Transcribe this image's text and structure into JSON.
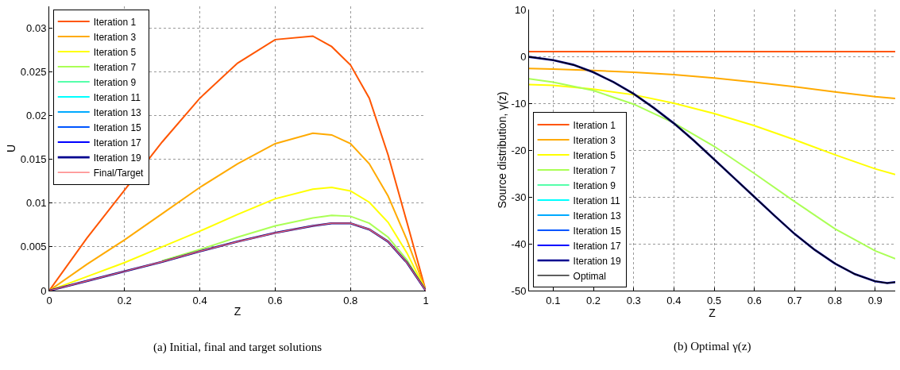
{
  "chart_data": [
    {
      "type": "line",
      "xlabel": "Z",
      "ylabel": "U",
      "annotations": [
        "(a) Initial, final and target solutions"
      ],
      "xlim": [
        0,
        1
      ],
      "xticks": [
        0,
        0.2,
        0.4,
        0.6,
        0.8,
        1
      ],
      "ylim": [
        0,
        0.0325
      ],
      "yticks": [
        0,
        0.005,
        0.01,
        0.015,
        0.02,
        0.025,
        0.03
      ],
      "grid": true,
      "legend": "top left",
      "marker": "none",
      "line_style": "solid",
      "x": [
        0,
        0.1,
        0.2,
        0.3,
        0.4,
        0.5,
        0.6,
        0.7,
        0.75,
        0.8,
        0.85,
        0.9,
        0.95,
        1
      ],
      "series": [
        {
          "name": "Iteration 1",
          "color": "#ff5500",
          "values": [
            0,
            0.006,
            0.0115,
            0.017,
            0.022,
            0.026,
            0.0287,
            0.0291,
            0.0279,
            0.0258,
            0.022,
            0.0155,
            0.0078,
            0
          ]
        },
        {
          "name": "Iteration 3",
          "color": "#ffaa00",
          "values": [
            0,
            0.003,
            0.0058,
            0.0088,
            0.0118,
            0.0145,
            0.0168,
            0.018,
            0.0178,
            0.0168,
            0.0145,
            0.0108,
            0.0058,
            0
          ]
        },
        {
          "name": "Iteration 5",
          "color": "#ffff00",
          "values": [
            0,
            0.0016,
            0.0032,
            0.005,
            0.0068,
            0.0087,
            0.0105,
            0.0116,
            0.0118,
            0.0114,
            0.0101,
            0.0078,
            0.0043,
            0
          ]
        },
        {
          "name": "Iteration 7",
          "color": "#aaff55",
          "values": [
            null,
            null,
            null,
            0.0034,
            0.0047,
            0.0061,
            0.0074,
            0.0083,
            0.0086,
            0.0085,
            0.0077,
            0.0061,
            0.0035,
            0
          ]
        },
        {
          "name": "Iteration 9",
          "color": "#55ffaa",
          "values": [
            null,
            null,
            null,
            null,
            null,
            null,
            null,
            null,
            null,
            null,
            null,
            null,
            null,
            null
          ]
        },
        {
          "name": "Iteration 11",
          "color": "#00ffff",
          "values": [
            null,
            null,
            null,
            null,
            null,
            null,
            null,
            null,
            null,
            null,
            null,
            null,
            null,
            null
          ]
        },
        {
          "name": "Iteration 13",
          "color": "#00aaff",
          "values": [
            null,
            null,
            null,
            null,
            null,
            null,
            null,
            null,
            null,
            null,
            null,
            null,
            null,
            null
          ]
        },
        {
          "name": "Iteration 15",
          "color": "#0055ff",
          "values": [
            null,
            null,
            null,
            null,
            null,
            null,
            null,
            null,
            null,
            null,
            null,
            null,
            null,
            null
          ]
        },
        {
          "name": "Iteration 17",
          "color": "#0000ff",
          "values": [
            null,
            null,
            null,
            null,
            null,
            null,
            null,
            null,
            null,
            null,
            null,
            null,
            null,
            null
          ]
        },
        {
          "name": "Iteration 19",
          "color": "#00008f",
          "values": [
            0,
            0.0011,
            0.0022,
            0.0033,
            0.0045,
            0.0056,
            0.0066,
            0.0074,
            0.0077,
            0.0077,
            0.007,
            0.0056,
            0.0032,
            0
          ]
        },
        {
          "name": "Final/Target",
          "color": "#ff6b6b",
          "values": [
            0,
            0.0011,
            0.0022,
            0.0033,
            0.0045,
            0.0056,
            0.0066,
            0.0074,
            0.0077,
            0.0077,
            0.007,
            0.0056,
            0.0032,
            0
          ]
        }
      ]
    },
    {
      "type": "line",
      "xlabel": "Z",
      "ylabel": "Source distribution, γ(z)",
      "annotations": [
        "(b) Optimal γ(z)"
      ],
      "xlim": [
        0.04,
        0.95
      ],
      "xticks": [
        0.1,
        0.2,
        0.3,
        0.4,
        0.5,
        0.6,
        0.7,
        0.8,
        0.9
      ],
      "ylim": [
        -50,
        10
      ],
      "yticks": [
        -50,
        -40,
        -30,
        -20,
        -10,
        0,
        10
      ],
      "grid": true,
      "legend": "bottom left",
      "marker": "none",
      "line_style": "solid",
      "x": [
        0.04,
        0.1,
        0.15,
        0.2,
        0.25,
        0.3,
        0.35,
        0.4,
        0.45,
        0.5,
        0.55,
        0.6,
        0.65,
        0.7,
        0.75,
        0.8,
        0.85,
        0.9,
        0.93,
        0.95
      ],
      "series": [
        {
          "name": "Iteration 1",
          "color": "#ff5500",
          "x": [
            0.04,
            0.95
          ],
          "values": [
            1,
            1
          ]
        },
        {
          "name": "Iteration 3",
          "color": "#ffaa00",
          "x": [
            0.04,
            0.1,
            0.2,
            0.3,
            0.4,
            0.5,
            0.6,
            0.7,
            0.8,
            0.9,
            0.95
          ],
          "values": [
            -2.6,
            -2.7,
            -3,
            -3.4,
            -3.9,
            -4.6,
            -5.5,
            -6.5,
            -7.6,
            -8.6,
            -9
          ]
        },
        {
          "name": "Iteration 5",
          "color": "#ffff00",
          "x": [
            0.04,
            0.1,
            0.2,
            0.3,
            0.4,
            0.5,
            0.6,
            0.7,
            0.8,
            0.9,
            0.95
          ],
          "values": [
            -6,
            -6.2,
            -7,
            -8.2,
            -10,
            -12.2,
            -14.8,
            -17.8,
            -21,
            -24,
            -25.2
          ]
        },
        {
          "name": "Iteration 7",
          "color": "#aaff55",
          "x": [
            0.04,
            0.1,
            0.2,
            0.3,
            0.4,
            0.5,
            0.6,
            0.7,
            0.8,
            0.9,
            0.95
          ],
          "values": [
            -4.8,
            -5.5,
            -7.3,
            -10.2,
            -14.2,
            -19.2,
            -25,
            -31,
            -36.8,
            -41.5,
            -43.2
          ]
        },
        {
          "name": "Iteration 9",
          "color": "#55ffaa",
          "values": [
            null,
            null,
            null,
            null,
            null,
            null,
            null,
            null,
            null,
            null,
            null,
            null,
            null,
            null,
            null,
            null,
            null,
            null,
            null,
            null
          ]
        },
        {
          "name": "Iteration 11",
          "color": "#00ffff",
          "values": [
            null,
            null,
            null,
            null,
            null,
            null,
            null,
            null,
            null,
            null,
            null,
            null,
            null,
            null,
            null,
            null,
            null,
            null,
            null,
            null
          ]
        },
        {
          "name": "Iteration 13",
          "color": "#00aaff",
          "values": [
            null,
            null,
            null,
            null,
            null,
            null,
            null,
            null,
            null,
            null,
            null,
            null,
            null,
            null,
            null,
            null,
            null,
            null,
            null,
            null
          ]
        },
        {
          "name": "Iteration 15",
          "color": "#0055ff",
          "values": [
            null,
            null,
            null,
            null,
            null,
            null,
            null,
            null,
            null,
            null,
            null,
            null,
            null,
            null,
            null,
            null,
            null,
            null,
            null,
            null
          ]
        },
        {
          "name": "Iteration 17",
          "color": "#0000ff",
          "values": [
            null,
            null,
            null,
            null,
            null,
            null,
            null,
            null,
            null,
            null,
            null,
            null,
            null,
            null,
            null,
            null,
            null,
            null,
            null,
            null
          ]
        },
        {
          "name": "Iteration 19",
          "color": "#00008f",
          "values": [
            -0.1,
            -0.8,
            -1.8,
            -3.4,
            -5.5,
            -8,
            -11,
            -14.3,
            -18,
            -22,
            -26,
            -30,
            -34,
            -37.9,
            -41.3,
            -44.2,
            -46.5,
            -48,
            -48.4,
            -48.2
          ]
        },
        {
          "name": "Optimal",
          "color": "#000000",
          "values": [
            -0.1,
            -0.8,
            -1.8,
            -3.4,
            -5.5,
            -8,
            -11,
            -14.3,
            -18,
            -22,
            -26,
            -30,
            -34,
            -37.9,
            -41.3,
            -44.2,
            -46.5,
            -48,
            -48.4,
            -48.2
          ]
        }
      ]
    }
  ]
}
